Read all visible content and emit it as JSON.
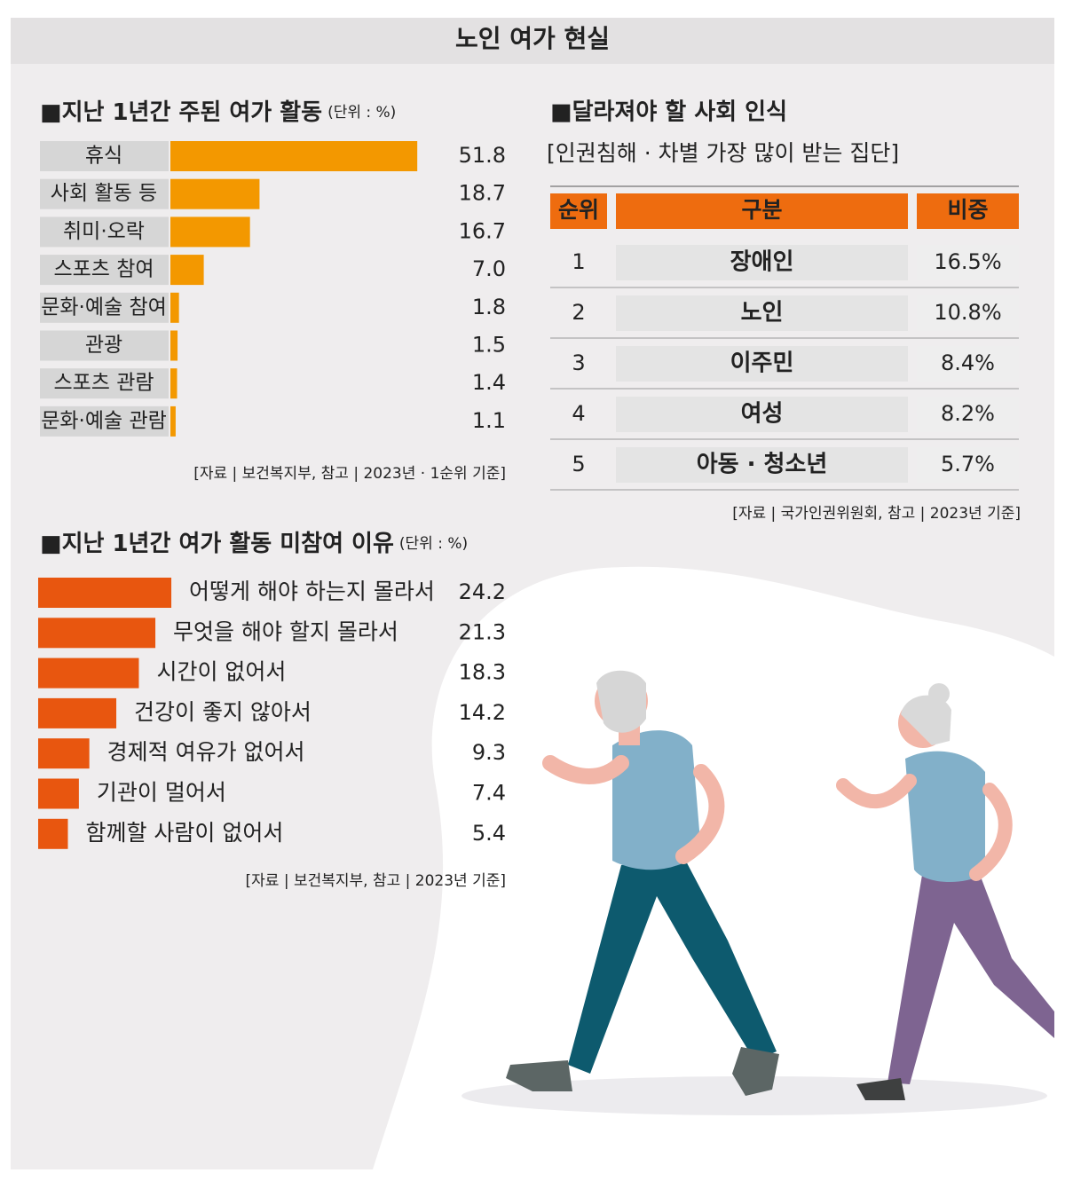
{
  "title": "노인 여가 현실",
  "chart_data": [
    {
      "type": "bar",
      "orientation": "horizontal",
      "title": "■지난 1년간 주된 여가 활동",
      "unit": "(단위 : %)",
      "categories": [
        "휴식",
        "사회 활동 등",
        "취미·오락",
        "스포츠 참여",
        "문화·예술 참여",
        "관광",
        "스포츠 관람",
        "문화·예술 관람"
      ],
      "values": [
        51.8,
        18.7,
        16.7,
        7.0,
        1.8,
        1.5,
        1.4,
        1.1
      ],
      "value_labels": [
        "51.8",
        "18.7",
        "16.7",
        "7.0",
        "1.8",
        "1.5",
        "1.4",
        "1.1"
      ],
      "color": "#f39800",
      "label_box_color": "#d6d6d6",
      "source": "[자료 | 보건복지부, 참고 |  2023년 · 1순위 기준]"
    },
    {
      "type": "bar",
      "orientation": "horizontal",
      "title": "■지난 1년간 여가 활동 미참여 이유",
      "unit": "(단위 : %)",
      "categories": [
        "어떻게 해야 하는지 몰라서",
        "무엇을 해야 할지 몰라서",
        "시간이 없어서",
        "건강이 좋지 않아서",
        "경제적 여유가 없어서",
        "기관이 멀어서",
        "함께할 사람이 없어서"
      ],
      "values": [
        24.2,
        21.3,
        18.3,
        14.2,
        9.3,
        7.4,
        5.4
      ],
      "color": "#e8560f",
      "source": "[자료 | 보건복지부, 참고 | 2023년 기준]"
    }
  ],
  "table": {
    "title": "■달라져야 할 사회 인식",
    "subtitle": "[인권침해 · 차별 가장 많이 받는 집단]",
    "header": [
      "순위",
      "구분",
      "비중"
    ],
    "rows": [
      [
        "1",
        "장애인",
        "16.5%"
      ],
      [
        "2",
        "노인",
        "10.8%"
      ],
      [
        "3",
        "이주민",
        "8.4%"
      ],
      [
        "4",
        "여성",
        "8.2%"
      ],
      [
        "5",
        "아동 · 청소년",
        "5.7%"
      ]
    ],
    "header_color": "#ee6c0f",
    "source": "[자료 | 국가인권위원회, 참고 | 2023년 기준]"
  }
}
